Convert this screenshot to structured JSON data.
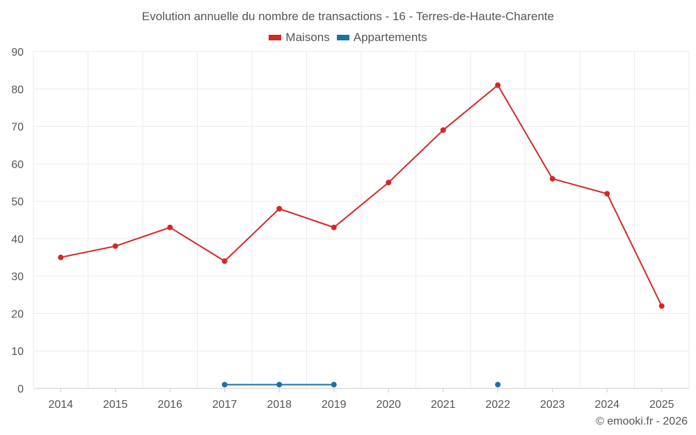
{
  "chart_data": {
    "type": "line",
    "title": "Evolution annuelle du nombre de transactions - 16 - Terres-de-Haute-Charente",
    "categories": [
      "2014",
      "2015",
      "2016",
      "2017",
      "2018",
      "2019",
      "2020",
      "2021",
      "2022",
      "2023",
      "2024",
      "2025"
    ],
    "ylim": [
      0,
      90
    ],
    "yticks": [
      0,
      10,
      20,
      30,
      40,
      50,
      60,
      70,
      80,
      90
    ],
    "series": [
      {
        "name": "Maisons",
        "color": "#d62728",
        "values": [
          35,
          38,
          43,
          34,
          48,
          43,
          55,
          69,
          81,
          56,
          52,
          22
        ]
      },
      {
        "name": "Appartements",
        "color": "#1f6fa8",
        "values": [
          null,
          null,
          null,
          1,
          1,
          1,
          null,
          null,
          1,
          null,
          null,
          null
        ]
      }
    ],
    "legend_position": "top-center",
    "grid": true
  },
  "credit": "© emooki.fr - 2026"
}
